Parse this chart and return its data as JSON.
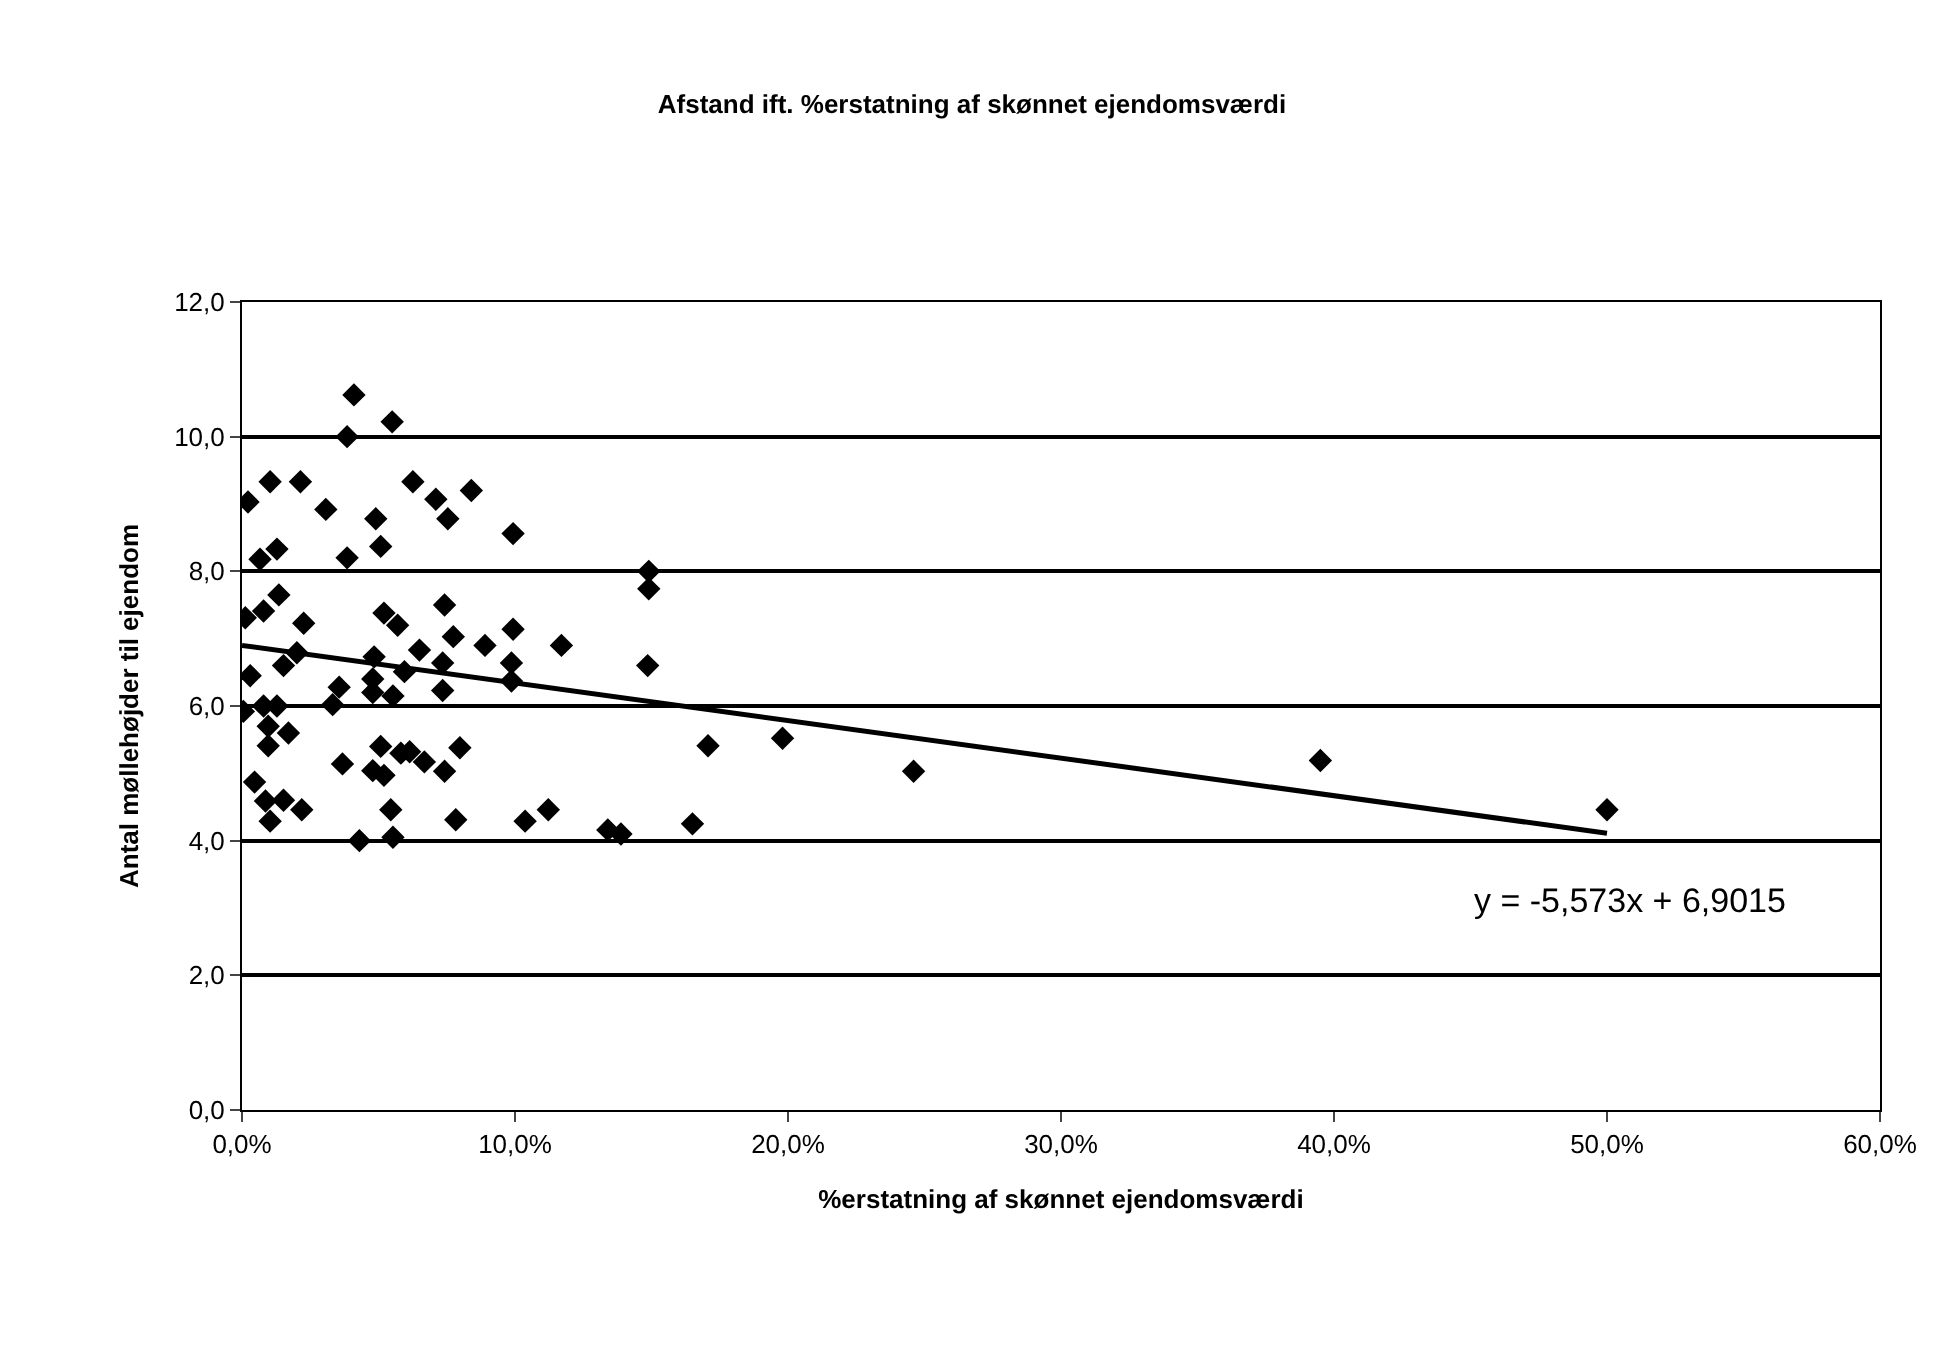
{
  "chart_data": {
    "type": "scatter",
    "title": "Afstand ift. %erstatning af skønnet ejendomsværdi",
    "xlabel": "%erstatning af skønnet ejendomsværdi",
    "ylabel": "Antal møllehøjder til ejendom",
    "xlim": [
      0,
      0.6
    ],
    "xticks": [
      {
        "value": 0,
        "label": "0,0%"
      },
      {
        "value": 0.1,
        "label": "10,0%"
      },
      {
        "value": 0.2,
        "label": "20,0%"
      },
      {
        "value": 0.3,
        "label": "30,0%"
      },
      {
        "value": 0.4,
        "label": "40,0%"
      },
      {
        "value": 0.5,
        "label": "50,0%"
      },
      {
        "value": 0.6,
        "label": "60,0%"
      }
    ],
    "ylim": [
      0,
      12
    ],
    "yticks": [
      {
        "value": 0,
        "label": "0,0"
      },
      {
        "value": 2,
        "label": "2,0"
      },
      {
        "value": 4,
        "label": "4,0"
      },
      {
        "value": 6,
        "label": "6,0"
      },
      {
        "value": 8,
        "label": "8,0"
      },
      {
        "value": 10,
        "label": "10,0"
      },
      {
        "value": 12,
        "label": "12,0"
      }
    ],
    "grid": "y",
    "marker": "diamond",
    "series": [
      {
        "color": "#000000",
        "x": [
          0.041,
          0.055,
          0.0385,
          0.0103,
          0.0214,
          0.0626,
          0.0022,
          0.0307,
          0.071,
          0.084,
          0.0754,
          0.049,
          0.0508,
          0.0993,
          0.0128,
          0.0066,
          0.0385,
          0.0135,
          0.0079,
          0.0012,
          0.0226,
          0.052,
          0.057,
          0.0742,
          0.0774,
          0.0993,
          0.089,
          0.117,
          0.065,
          0.0201,
          0.0152,
          0.0484,
          0.0735,
          0.0987,
          0.0595,
          0.0987,
          0.003,
          0.0356,
          0.0479,
          0.0479,
          0.0553,
          0.0735,
          0.0332,
          0.0005,
          0.0079,
          0.0128,
          0.0096,
          0.017,
          0.0096,
          0.0508,
          0.0582,
          0.0614,
          0.0798,
          0.0368,
          0.0479,
          0.052,
          0.0668,
          0.0742,
          0.0046,
          0.0086,
          0.0152,
          0.0219,
          0.0103,
          0.0545,
          0.0783,
          0.1037,
          0.1122,
          0.043,
          0.0553,
          0.134,
          0.149,
          0.149,
          0.1486,
          0.1707,
          0.198,
          0.246,
          0.1388,
          0.165,
          0.395,
          0.5
        ],
        "values": [
          10.62,
          10.22,
          10.0,
          9.33,
          9.33,
          9.33,
          9.03,
          8.92,
          9.07,
          9.2,
          8.78,
          8.78,
          8.37,
          8.56,
          8.33,
          8.18,
          8.2,
          7.65,
          7.41,
          7.31,
          7.23,
          7.38,
          7.2,
          7.5,
          7.03,
          7.14,
          6.9,
          6.9,
          6.83,
          6.79,
          6.6,
          6.73,
          6.64,
          6.64,
          6.51,
          6.37,
          6.45,
          6.28,
          6.4,
          6.2,
          6.15,
          6.23,
          6.02,
          5.92,
          6.0,
          6.0,
          5.7,
          5.6,
          5.41,
          5.4,
          5.3,
          5.32,
          5.38,
          5.14,
          5.04,
          4.97,
          5.17,
          5.03,
          4.87,
          4.59,
          4.6,
          4.46,
          4.29,
          4.46,
          4.31,
          4.29,
          4.46,
          4.0,
          4.05,
          4.16,
          8.0,
          7.74,
          6.6,
          5.41,
          5.52,
          5.03,
          4.1,
          4.25,
          5.19,
          4.46
        ]
      },
      {
        "type": "line",
        "color": "#000000",
        "marker": "none",
        "x": [
          0,
          0.5
        ],
        "values": [
          6.9,
          4.11
        ]
      }
    ],
    "annotations": [
      "y = -5,573x + 6,9015"
    ]
  }
}
